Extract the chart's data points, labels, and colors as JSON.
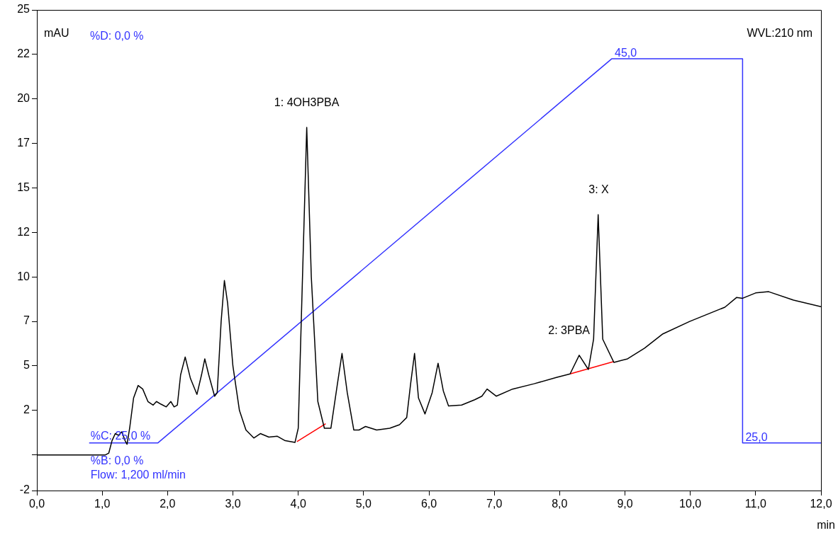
{
  "chart_data": {
    "type": "line",
    "xlabel": "min",
    "ylabel": "mAU",
    "xlim": [
      0,
      12
    ],
    "ylim": [
      -2,
      25
    ],
    "xticks": [
      {
        "value": 0,
        "label": "0,0"
      },
      {
        "value": 1,
        "label": "1,0"
      },
      {
        "value": 2,
        "label": "2,0"
      },
      {
        "value": 3,
        "label": "3,0"
      },
      {
        "value": 4,
        "label": "4,0"
      },
      {
        "value": 5,
        "label": "5,0"
      },
      {
        "value": 6,
        "label": "6,0"
      },
      {
        "value": 7,
        "label": "7,0"
      },
      {
        "value": 8,
        "label": "8,0"
      },
      {
        "value": 9,
        "label": "9,0"
      },
      {
        "value": 10,
        "label": "10,0"
      },
      {
        "value": 11,
        "label": "11,0"
      },
      {
        "value": 12,
        "label": "12,0"
      }
    ],
    "yticks": [
      -2,
      {
        "value": 0,
        "label": null
      },
      {
        "value": 2.5,
        "label": "2"
      },
      5,
      {
        "value": 7.5,
        "label": "7"
      },
      10,
      {
        "value": 12.5,
        "label": "12"
      },
      15,
      {
        "value": 17.5,
        "label": "17"
      },
      20,
      {
        "value": 22.5,
        "label": "22"
      },
      25
    ],
    "grid": false,
    "legend": false,
    "marker": "none",
    "line_style": "solid",
    "series": [
      {
        "color": "#000000",
        "x": [
          0,
          0.5,
          1.05,
          1.1,
          1.15,
          1.2,
          1.25,
          1.3,
          1.35,
          1.38,
          1.42,
          1.48,
          1.55,
          1.62,
          1.7,
          1.78,
          1.83,
          1.9,
          1.98,
          2.05,
          2.1,
          2.15,
          2.2,
          2.27,
          2.35,
          2.45,
          2.52,
          2.57,
          2.63,
          2.72,
          2.76,
          2.82,
          2.87,
          2.92,
          3.0,
          3.1,
          3.2,
          3.32,
          3.42,
          3.55,
          3.68,
          3.8,
          3.95,
          4.0,
          4.05,
          4.13,
          4.2,
          4.3,
          4.4,
          4.5,
          4.6,
          4.67,
          4.75,
          4.85,
          4.93,
          5.03,
          5.2,
          5.4,
          5.55,
          5.66,
          5.72,
          5.78,
          5.84,
          5.94,
          6.05,
          6.14,
          6.22,
          6.3,
          6.5,
          6.7,
          6.81,
          6.89,
          7.03,
          7.28,
          7.61,
          7.95,
          8.16,
          8.3,
          8.44,
          8.52,
          8.59,
          8.66,
          8.83,
          9.04,
          9.3,
          9.58,
          9.99,
          10.53,
          10.71,
          10.8,
          11.0,
          11.2,
          11.58,
          12.0
        ],
        "values": [
          0,
          0,
          0,
          0.1,
          0.8,
          1.2,
          1.1,
          1.3,
          0.8,
          0.6,
          1.5,
          3.2,
          3.9,
          3.7,
          3.0,
          2.8,
          3.0,
          2.85,
          2.7,
          3.0,
          2.7,
          2.8,
          4.5,
          5.5,
          4.3,
          3.4,
          4.5,
          5.4,
          4.5,
          3.3,
          3.5,
          7.5,
          9.8,
          8.5,
          5.0,
          2.5,
          1.4,
          0.95,
          1.2,
          1.0,
          1.05,
          0.8,
          0.7,
          1.5,
          8,
          18.4,
          10,
          3,
          1.5,
          1.5,
          4,
          5.7,
          3.5,
          1.4,
          1.4,
          1.6,
          1.4,
          1.5,
          1.7,
          2.1,
          4,
          5.7,
          3.2,
          2.3,
          3.5,
          5.15,
          3.6,
          2.75,
          2.8,
          3.1,
          3.3,
          3.7,
          3.3,
          3.7,
          4.0,
          4.35,
          4.55,
          5.6,
          4.8,
          6.5,
          13.5,
          6.5,
          5.2,
          5.4,
          6.0,
          6.8,
          7.5,
          8.3,
          8.85,
          8.8,
          9.1,
          9.17,
          8.7,
          8.33
        ]
      },
      {
        "color": "#3333ff",
        "x": [
          0.8,
          1.85,
          8.8,
          10.8,
          10.8,
          12.0
        ],
        "values": [
          0.67,
          0.67,
          22.26,
          22.26,
          0.67,
          0.67
        ]
      },
      {
        "color": "#ff0000",
        "x": [
          3.98,
          4.42
        ],
        "values": [
          0.75,
          1.75
        ]
      },
      {
        "color": "#ff0000",
        "x": [
          8.16,
          8.83
        ],
        "values": [
          4.55,
          5.25
        ]
      }
    ],
    "annotations": [
      {
        "text": "1: 4OH3PBA",
        "x": 4.13,
        "y": 18.4
      },
      {
        "text": "2: 3PBA",
        "x": 8.3,
        "y": 5.6
      },
      {
        "text": "3: X",
        "x": 8.59,
        "y": 13.5
      },
      {
        "text": "45,0",
        "x": 8.8,
        "y": 22.26
      },
      {
        "text": "25,0",
        "x": 10.8,
        "y": 0.67
      },
      "%D: 0,0 %",
      "WVL:210 nm",
      "%C: 25,0 %",
      "%B: 0,0 %",
      "Flow: 1,200 ml/min"
    ]
  }
}
